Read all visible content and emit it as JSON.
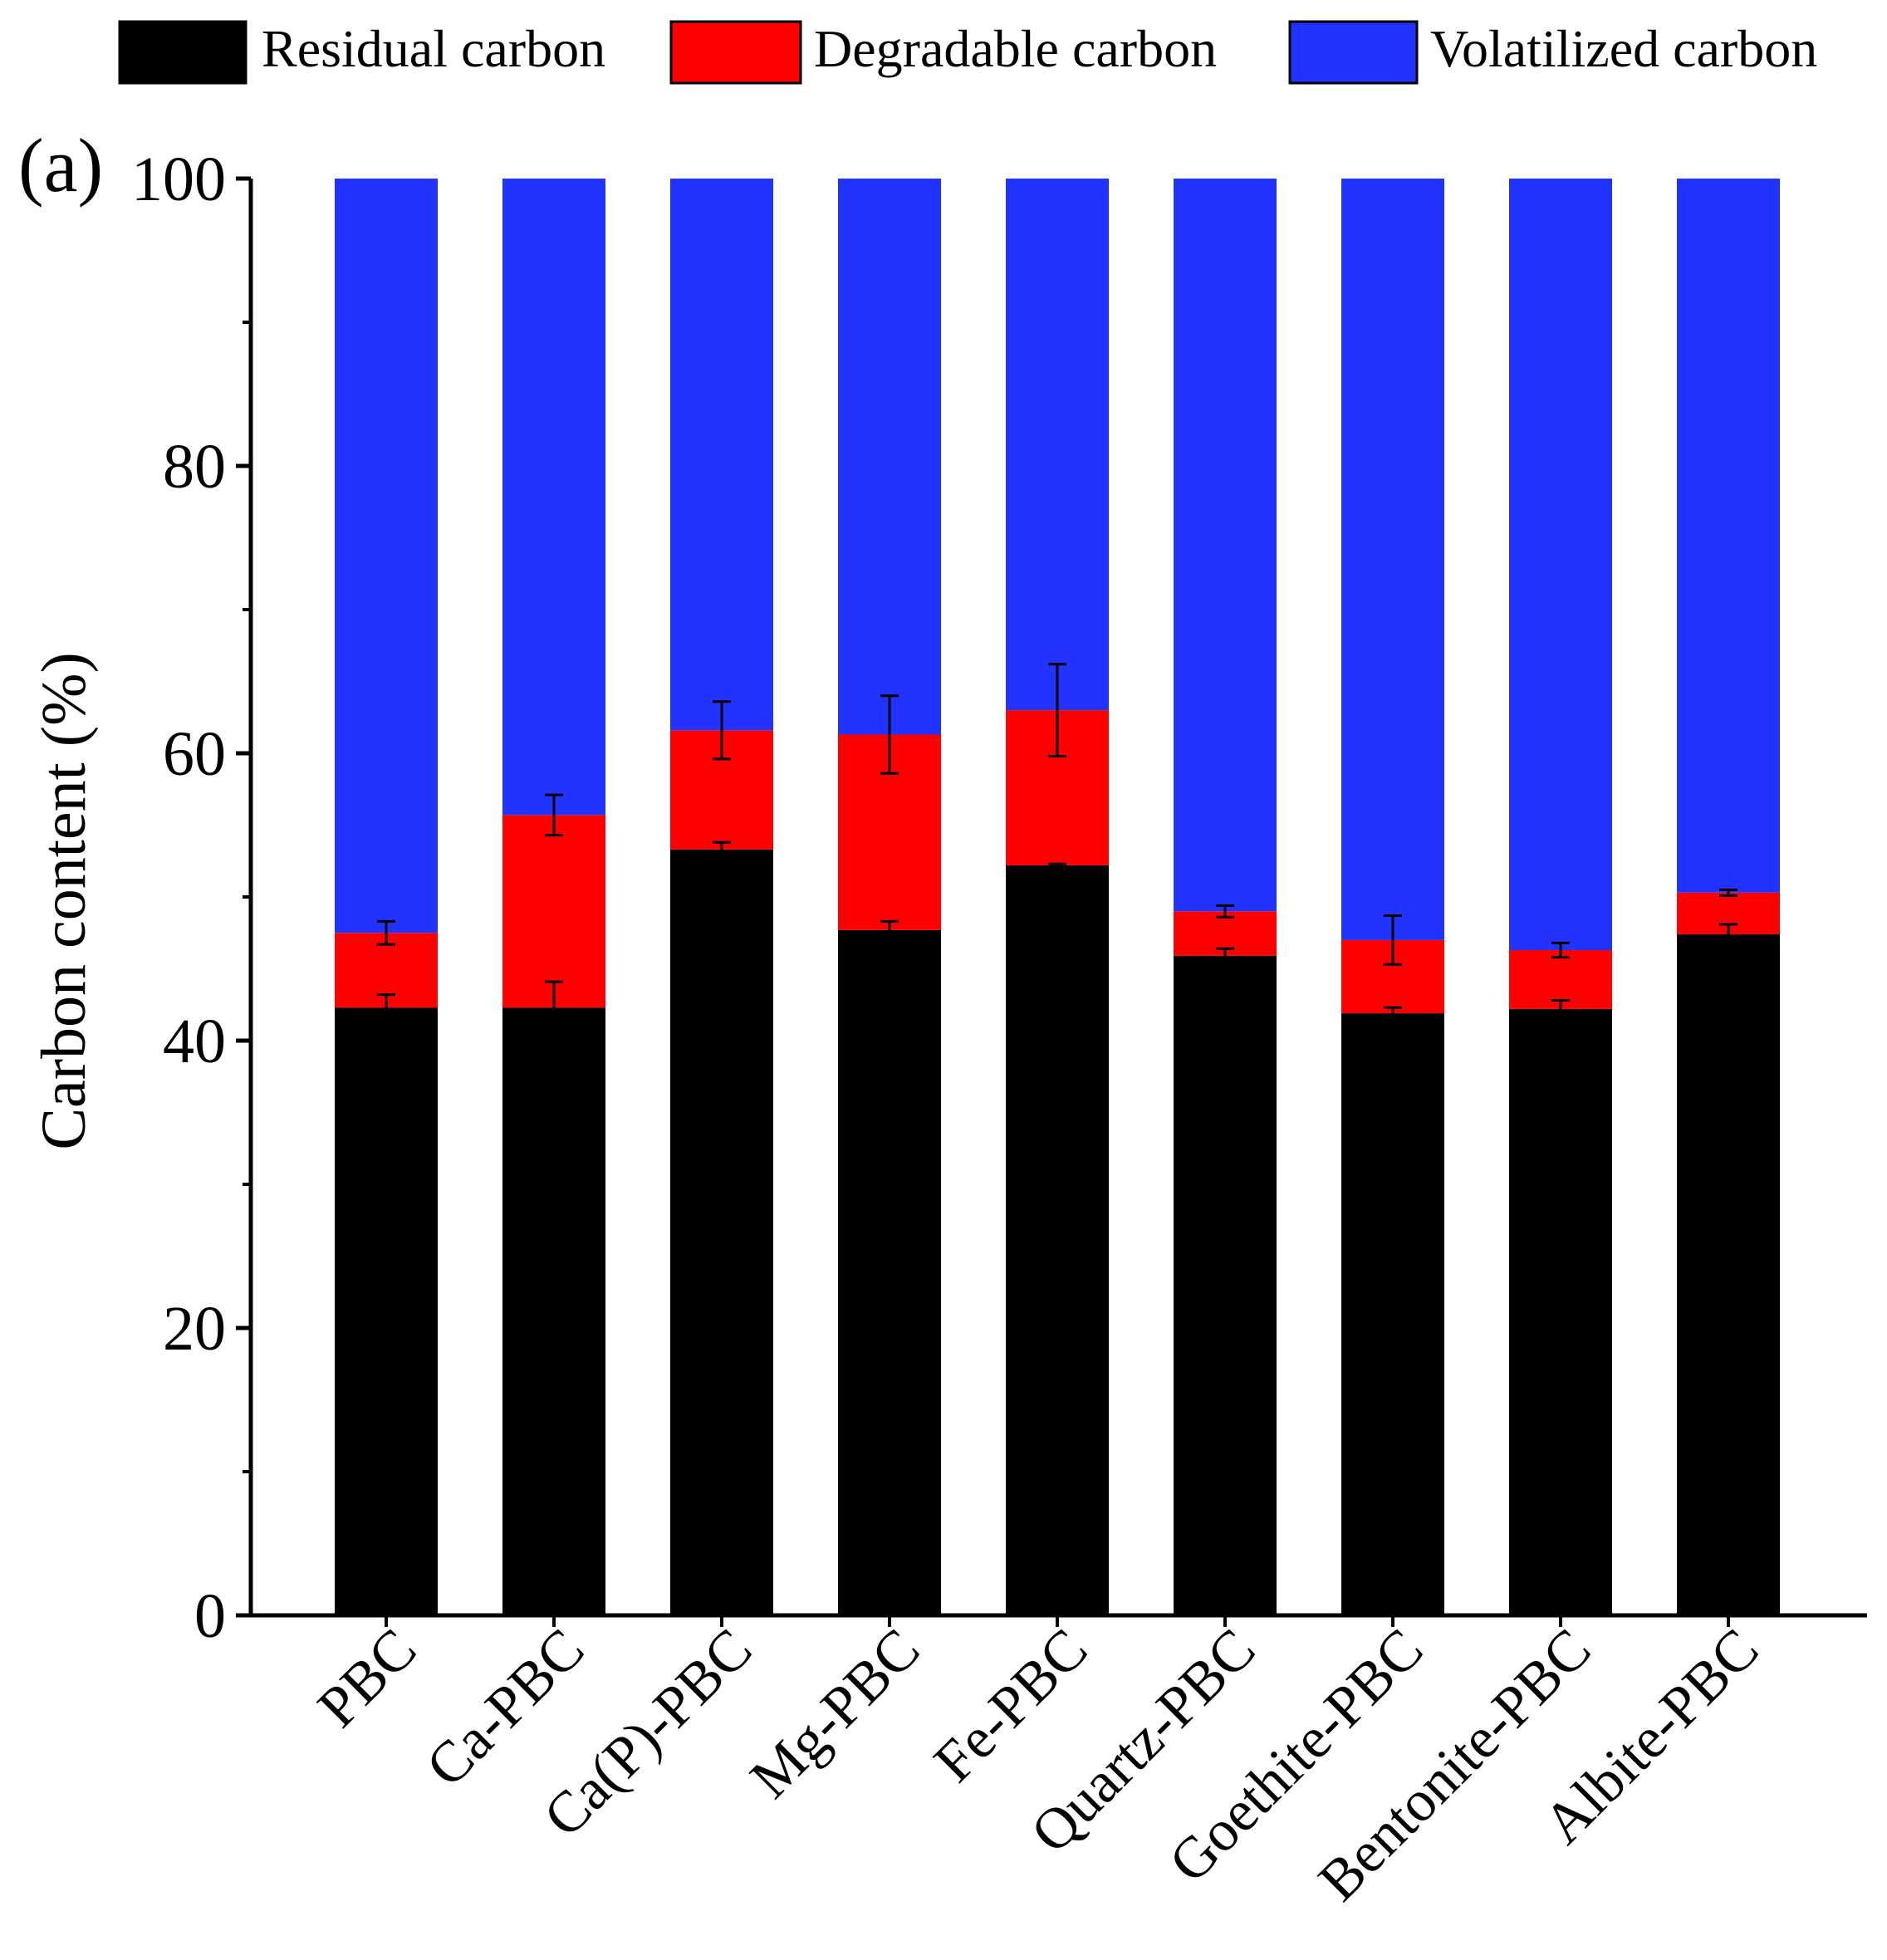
{
  "chart_data": {
    "type": "bar",
    "stacked": true,
    "panel_label": "(a)",
    "title": "",
    "xlabel": "",
    "ylabel": "Carbon content (%)",
    "ylim": [
      0,
      100
    ],
    "yticks": [
      0,
      20,
      40,
      60,
      80,
      100
    ],
    "grid": false,
    "legend_position": "top",
    "categories": [
      "PBC",
      "Ca-PBC",
      "Ca(P)-PBC",
      "Mg-PBC",
      "Fe-PBC",
      "Quartz-PBC",
      "Goethite-PBC",
      "Bentonite-PBC",
      "Albite-PBC"
    ],
    "series": [
      {
        "name": "Residual carbon",
        "color": "#000000",
        "values": [
          42.3,
          42.3,
          53.3,
          47.7,
          52.2,
          45.9,
          41.9,
          42.2,
          47.4
        ],
        "errors": [
          0.9,
          1.8,
          0.5,
          0.6,
          0.1,
          0.5,
          0.4,
          0.6,
          0.7
        ]
      },
      {
        "name": "Degradable carbon",
        "color": "#ff0000",
        "values": [
          5.2,
          13.4,
          8.3,
          13.6,
          10.8,
          3.1,
          5.1,
          4.1,
          2.9
        ],
        "errors": [
          0.8,
          1.4,
          2.0,
          2.7,
          3.2,
          0.4,
          1.7,
          0.5,
          0.2
        ]
      },
      {
        "name": "Volatilized carbon",
        "color": "#2233ff",
        "values": [
          52.5,
          44.3,
          38.4,
          38.7,
          37.0,
          51.0,
          53.0,
          53.7,
          49.7
        ],
        "errors": [
          0,
          0,
          0,
          0,
          0,
          0,
          0,
          0,
          0
        ]
      }
    ]
  }
}
